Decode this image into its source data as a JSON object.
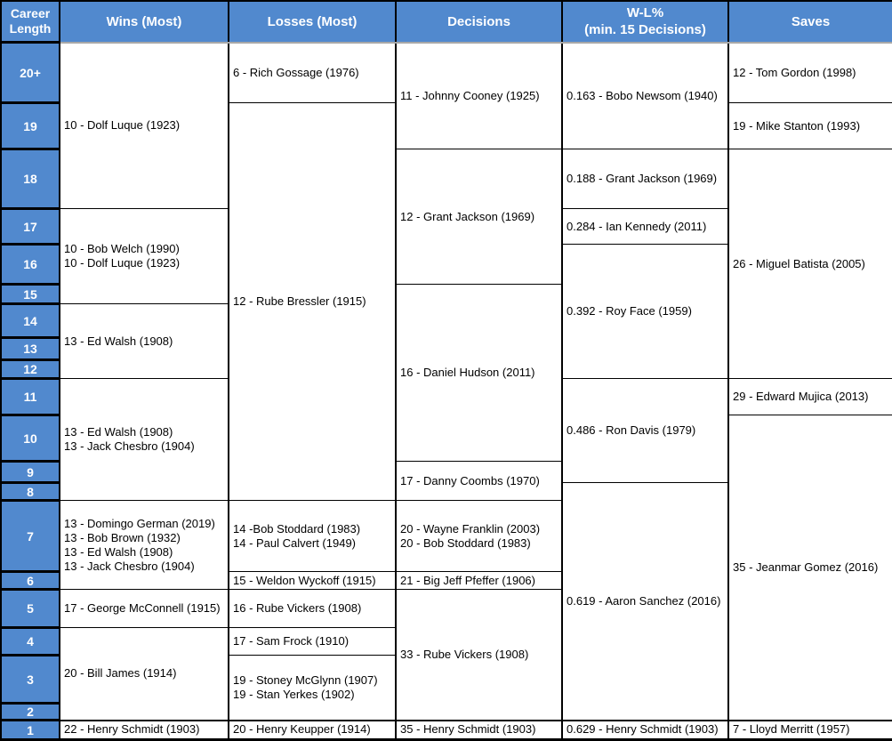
{
  "colors": {
    "header_blue": "#5189CE",
    "career_cell_blue": "#5189CE",
    "border_black": "#000000",
    "header_underline_gray": "#A8A8A8",
    "header_text_white": "#FFFFFF"
  },
  "headers": {
    "career": "Career\nLength",
    "wins": "Wins (Most)",
    "losses": "Losses (Most)",
    "decisions": "Decisions",
    "wl_pct": "W-L%\n(min. 15 Decisions)",
    "saves": "Saves"
  },
  "career_lengths": [
    "20+",
    "19",
    "18",
    "17",
    "16",
    "15",
    "14",
    "13",
    "12",
    "11",
    "10",
    "9",
    "8",
    "7",
    "6",
    "5",
    "4",
    "3",
    "2",
    "1"
  ],
  "wins": [
    "10 - Dolf Luque (1923)",
    "10 - Bob Welch (1990)\n10 - Dolf Luque (1923)",
    "13 - Ed Walsh (1908)",
    "13 - Ed Walsh (1908)\n13 - Jack Chesbro (1904)",
    "13 - Domingo German (2019)\n13 - Bob Brown (1932)\n13 - Ed Walsh (1908)\n13 - Jack Chesbro (1904)",
    "17 - George McConnell (1915)",
    "20 - Bill James (1914)",
    "22 - Henry Schmidt (1903)"
  ],
  "losses": [
    "6 - Rich Gossage (1976)",
    "12 - Rube Bressler (1915)",
    "14 -Bob Stoddard (1983)\n14 - Paul Calvert (1949)",
    "15 - Weldon Wyckoff (1915)",
    "16 - Rube Vickers (1908)",
    "17 - Sam Frock (1910)",
    "19 - Stoney McGlynn (1907)\n19 - Stan Yerkes (1902)",
    "20 - Henry Keupper (1914)"
  ],
  "decisions": [
    "11 - Johnny Cooney (1925)",
    "12 - Grant Jackson (1969)",
    "16 - Daniel Hudson (2011)",
    "17 - Danny Coombs (1970)",
    "20 - Wayne Franklin (2003)\n20 - Bob Stoddard (1983)",
    "21 - Big Jeff Pfeffer (1906)",
    "33 - Rube Vickers (1908)",
    "35 - Henry Schmidt (1903)"
  ],
  "wl_pct": [
    "0.163 - Bobo Newsom (1940)",
    "0.188 - Grant Jackson (1969)",
    "0.284 - Ian Kennedy (2011)",
    "0.392 - Roy Face (1959)",
    "0.486 - Ron Davis (1979)",
    "0.619 - Aaron Sanchez (2016)",
    "0.629 - Henry Schmidt (1903)"
  ],
  "saves": [
    "12 - Tom Gordon (1998)",
    "19 - Mike Stanton (1993)",
    "26 - Miguel Batista (2005)",
    "29 - Edward Mujica (2013)",
    "35 - Jeanmar Gomez (2016)",
    "7 - Lloyd Merritt (1957)"
  ]
}
